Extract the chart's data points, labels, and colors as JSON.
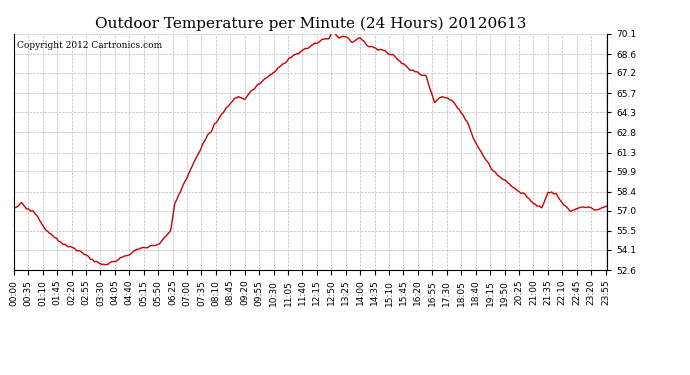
{
  "title": "Outdoor Temperature per Minute (24 Hours) 20120613",
  "copyright_text": "Copyright 2012 Cartronics.com",
  "line_color": "#cc0000",
  "background_color": "#ffffff",
  "grid_color": "#bbbbbb",
  "yticks": [
    52.6,
    54.1,
    55.5,
    57.0,
    58.4,
    59.9,
    61.3,
    62.8,
    64.3,
    65.7,
    67.2,
    68.6,
    70.1
  ],
  "ylim": [
    52.6,
    70.1
  ],
  "xtick_labels": [
    "00:00",
    "00:35",
    "01:10",
    "01:45",
    "02:20",
    "02:55",
    "03:30",
    "04:05",
    "04:40",
    "05:15",
    "05:50",
    "06:25",
    "07:00",
    "07:35",
    "08:10",
    "08:45",
    "09:20",
    "09:55",
    "10:30",
    "11:05",
    "11:40",
    "12:15",
    "12:50",
    "13:25",
    "14:00",
    "14:35",
    "15:10",
    "15:45",
    "16:20",
    "16:55",
    "17:30",
    "18:05",
    "18:40",
    "19:15",
    "19:50",
    "20:25",
    "21:00",
    "21:35",
    "22:10",
    "22:45",
    "23:20",
    "23:55"
  ],
  "title_fontsize": 11,
  "tick_fontsize": 6.5,
  "copyright_fontsize": 6.5,
  "linewidth": 1.0
}
